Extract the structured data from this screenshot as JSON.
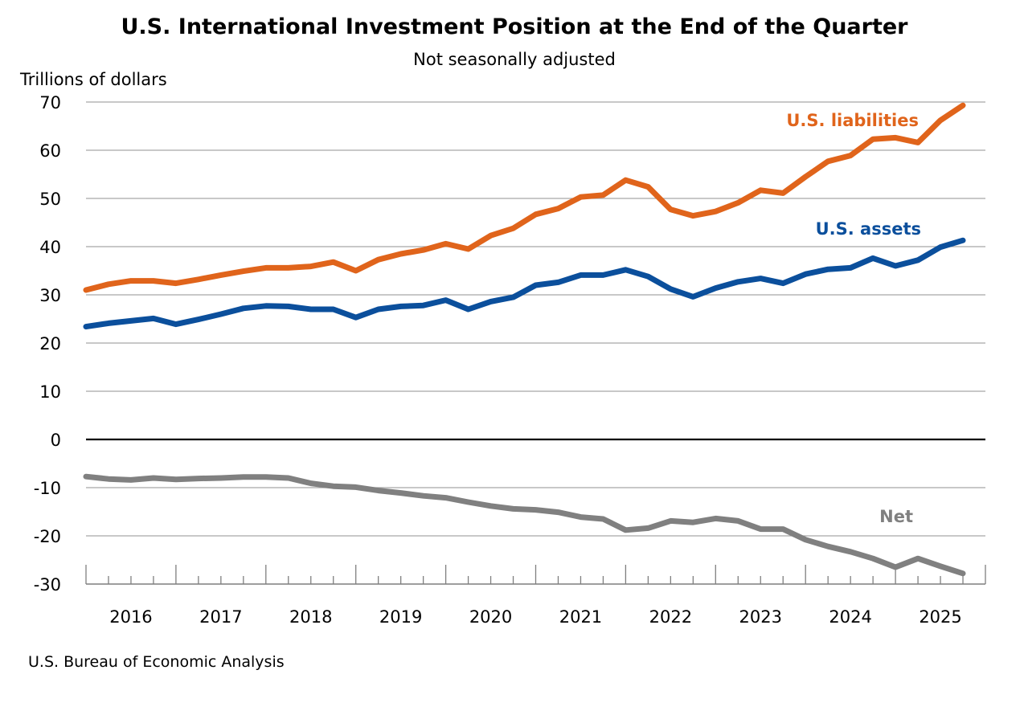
{
  "chart_data": {
    "type": "line",
    "title": "U.S. International Investment Position at the End of the Quarter",
    "subtitle": "Not seasonally adjusted",
    "ylabel": "Trillions of dollars",
    "xlabel": "",
    "ylim": [
      -30,
      70
    ],
    "yticks": [
      70,
      60,
      50,
      40,
      30,
      20,
      10,
      0,
      -10,
      -20,
      -30
    ],
    "ytick_labels": [
      "70",
      "60",
      "50",
      "40",
      "30",
      "20",
      "10",
      "0",
      "-10",
      "-20",
      "-30"
    ],
    "xtick_labels": [
      "2016",
      "2017",
      "2018",
      "2019",
      "2020",
      "2021",
      "2022",
      "2023",
      "2024",
      "2025"
    ],
    "grid": true,
    "frequency": "quarterly",
    "x": [
      "2015Q3",
      "2015Q4",
      "2016Q1",
      "2016Q2",
      "2016Q3",
      "2016Q4",
      "2017Q1",
      "2017Q2",
      "2017Q3",
      "2017Q4",
      "2018Q1",
      "2018Q2",
      "2018Q3",
      "2018Q4",
      "2019Q1",
      "2019Q2",
      "2019Q3",
      "2019Q4",
      "2020Q1",
      "2020Q2",
      "2020Q3",
      "2020Q4",
      "2021Q1",
      "2021Q2",
      "2021Q3",
      "2021Q4",
      "2022Q1",
      "2022Q2",
      "2022Q3",
      "2022Q4",
      "2023Q1",
      "2023Q2",
      "2023Q3",
      "2023Q4",
      "2024Q1",
      "2024Q2",
      "2024Q3",
      "2024Q4",
      "2025Q1",
      "2025Q2"
    ],
    "series": [
      {
        "name": "U.S. liabilities",
        "color": "#E0641B",
        "values": [
          31.0,
          32.2,
          32.9,
          32.9,
          32.4,
          33.2,
          34.1,
          34.9,
          35.6,
          35.6,
          35.9,
          36.8,
          35.0,
          37.3,
          38.5,
          39.3,
          40.6,
          39.5,
          42.3,
          43.8,
          46.7,
          47.9,
          50.3,
          50.7,
          53.8,
          52.4,
          47.7,
          46.4,
          47.3,
          49.1,
          51.7,
          51.1,
          54.5,
          57.7,
          58.9,
          62.3,
          62.6,
          61.6,
          66.2,
          69.3
        ]
      },
      {
        "name": "U.S. assets",
        "color": "#0B4F9C",
        "values": [
          23.4,
          24.1,
          24.6,
          25.1,
          23.9,
          24.9,
          26.0,
          27.2,
          27.7,
          27.6,
          27.0,
          27.0,
          25.3,
          27.0,
          27.6,
          27.8,
          28.9,
          27.0,
          28.6,
          29.5,
          32.0,
          32.6,
          34.1,
          34.1,
          35.2,
          33.8,
          31.2,
          29.6,
          31.4,
          32.7,
          33.4,
          32.4,
          34.3,
          35.3,
          35.6,
          37.6,
          36.0,
          37.2,
          39.9,
          41.3
        ]
      },
      {
        "name": "Net",
        "color": "#808080",
        "values": [
          -7.7,
          -8.2,
          -8.4,
          -8.0,
          -8.3,
          -8.1,
          -8.0,
          -7.8,
          -7.8,
          -8.0,
          -9.1,
          -9.7,
          -9.9,
          -10.6,
          -11.1,
          -11.7,
          -12.1,
          -13.0,
          -13.8,
          -14.4,
          -14.6,
          -15.1,
          -16.1,
          -16.5,
          -18.8,
          -18.4,
          -16.9,
          -17.2,
          -16.4,
          -16.9,
          -18.6,
          -18.6,
          -20.8,
          -22.2,
          -23.3,
          -24.7,
          -26.5,
          -24.7,
          -26.3,
          -27.8
        ]
      }
    ],
    "series_labels": [
      {
        "text": "U.S. liabilities",
        "series": 0,
        "placement": "upper-right, above line"
      },
      {
        "text": "U.S. assets",
        "series": 1,
        "placement": "right, above line"
      },
      {
        "text": "Net",
        "series": 2,
        "placement": "right, above line"
      }
    ],
    "source": "U.S. Bureau of Economic Analysis"
  }
}
